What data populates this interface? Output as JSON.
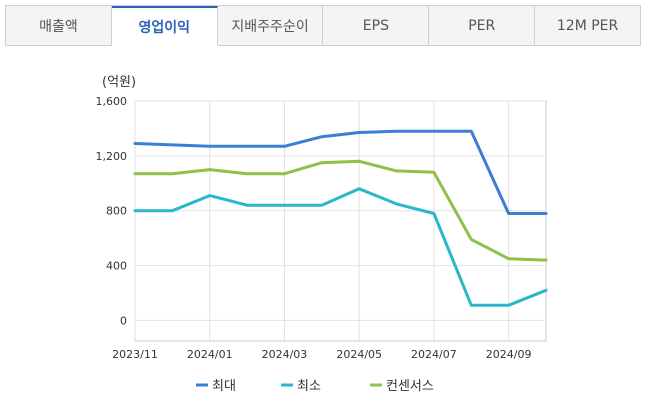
{
  "tabs": [
    {
      "label": "매출액",
      "active": false
    },
    {
      "label": "영업이익",
      "active": true
    },
    {
      "label": "지배주주순이",
      "active": false
    },
    {
      "label": "EPS",
      "active": false
    },
    {
      "label": "PER",
      "active": false
    },
    {
      "label": "12M PER",
      "active": false
    }
  ],
  "chart_data": {
    "type": "line",
    "ylabel": "(억원)",
    "ylim": [
      -150,
      1600
    ],
    "yticks": [
      0,
      400,
      800,
      1200,
      1600
    ],
    "ytick_labels": [
      "0",
      "400",
      "800",
      "1,200",
      "1,600"
    ],
    "xticks": [
      "2023/11",
      "2024/01",
      "2024/03",
      "2024/05",
      "2024/07",
      "2024/09"
    ],
    "x": [
      "2023/11",
      "2023/12",
      "2024/01",
      "2024/02",
      "2024/03",
      "2024/04",
      "2024/05",
      "2024/06",
      "2024/07",
      "2024/08",
      "2024/09",
      "2024/10"
    ],
    "grid": true,
    "legend_position": "bottom",
    "series": [
      {
        "name": "최대",
        "color": "#3a7fd5",
        "values": [
          1290,
          1280,
          1270,
          1270,
          1270,
          1340,
          1370,
          1380,
          1380,
          1380,
          780,
          780
        ]
      },
      {
        "name": "최소",
        "color": "#2ab7c9",
        "values": [
          800,
          800,
          910,
          840,
          840,
          840,
          960,
          850,
          780,
          110,
          110,
          220
        ]
      },
      {
        "name": "컨센서스",
        "color": "#8fc14a",
        "values": [
          1070,
          1070,
          1100,
          1070,
          1070,
          1150,
          1160,
          1090,
          1080,
          590,
          450,
          440
        ]
      }
    ]
  }
}
